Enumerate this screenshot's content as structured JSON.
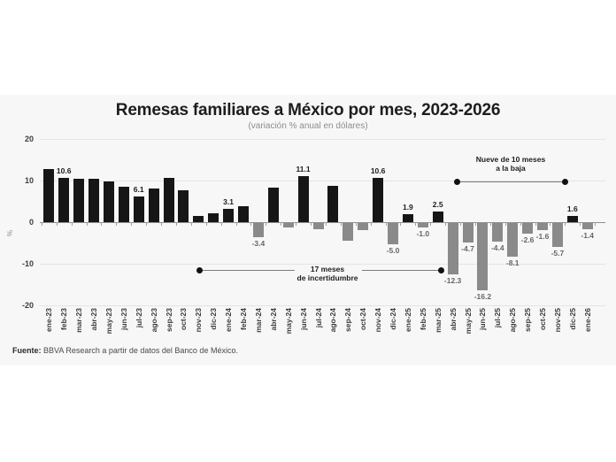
{
  "page": {
    "title": "Remesas familiares a México por mes, 2023-2026",
    "subtitle": "(variación % anual en dólares)",
    "source_label": "Fuente:",
    "source_text": " BBVA Research a partir de datos del Banco de México."
  },
  "annotations": {
    "uncertainty": {
      "line1": "17 meses",
      "line2": "de incertidumbre"
    },
    "decline": {
      "line1": "Nueve de 10 meses",
      "line2": "a la baja"
    }
  },
  "chart_data": {
    "type": "bar",
    "title": "Remesas familiares a México por mes, 2023-2026",
    "subtitle": "(variación % anual en dólares)",
    "xlabel": "",
    "ylabel": "%",
    "ylim": [
      -20,
      20
    ],
    "grid": true,
    "ytick_values": [
      20,
      10,
      0,
      -10,
      -20
    ],
    "ytick_labels": [
      "20",
      "10",
      "0",
      "-10",
      "-20"
    ],
    "categories": [
      "ene-23",
      "feb-23",
      "mar-23",
      "abr-23",
      "may-23",
      "jun-23",
      "jul-23",
      "ago-23",
      "sep-23",
      "oct-23",
      "nov-23",
      "dic-23",
      "ene-24",
      "feb-24",
      "mar-24",
      "abr-24",
      "may-24",
      "jun-24",
      "jul-24",
      "ago-24",
      "sep-24",
      "oct-24",
      "nov-24",
      "dic-24",
      "ene-25",
      "feb-25",
      "mar-25",
      "abr-25",
      "may-25",
      "jun-25",
      "jul-25",
      "ago-25",
      "sep-25",
      "oct-25",
      "nov-25",
      "dic-25",
      "ene-26"
    ],
    "values": [
      12.8,
      10.6,
      10.4,
      10.4,
      9.8,
      8.5,
      6.1,
      8.0,
      10.6,
      7.7,
      1.5,
      2.2,
      3.1,
      3.9,
      -3.4,
      8.4,
      -1.1,
      11.1,
      -1.5,
      8.7,
      -4.3,
      -1.7,
      10.6,
      -5.0,
      1.9,
      -1.0,
      2.5,
      -12.3,
      -4.7,
      -16.2,
      -4.4,
      -8.1,
      -2.6,
      -1.6,
      -5.7,
      1.6,
      -1.4
    ],
    "shown_value_labels": [
      null,
      "10.6",
      null,
      null,
      null,
      null,
      "6.1",
      null,
      null,
      null,
      null,
      null,
      "3.1",
      null,
      "-3.4",
      null,
      null,
      "11.1",
      null,
      null,
      null,
      null,
      "10.6",
      "-5.0",
      "1.9",
      "-1.0",
      "2.5",
      "-12.3",
      "-4.7",
      "-16.2",
      "-4.4",
      "-8.1",
      "-2.6",
      "-1.6",
      "-5.7",
      "1.6",
      "-1.4"
    ],
    "positive_color": "#161616",
    "negative_color": "#8a8a8a",
    "annotations": [
      {
        "text": "17 meses de incertidumbre",
        "span": [
          "nov-23",
          "mar-25"
        ],
        "y": -11.7,
        "style": "line-with-end-dots"
      },
      {
        "text": "Nueve de 10 meses a la baja",
        "span": [
          "abr-25",
          "nov-25"
        ],
        "y": 9.7,
        "style": "line-with-end-dots"
      }
    ],
    "legend": null
  }
}
